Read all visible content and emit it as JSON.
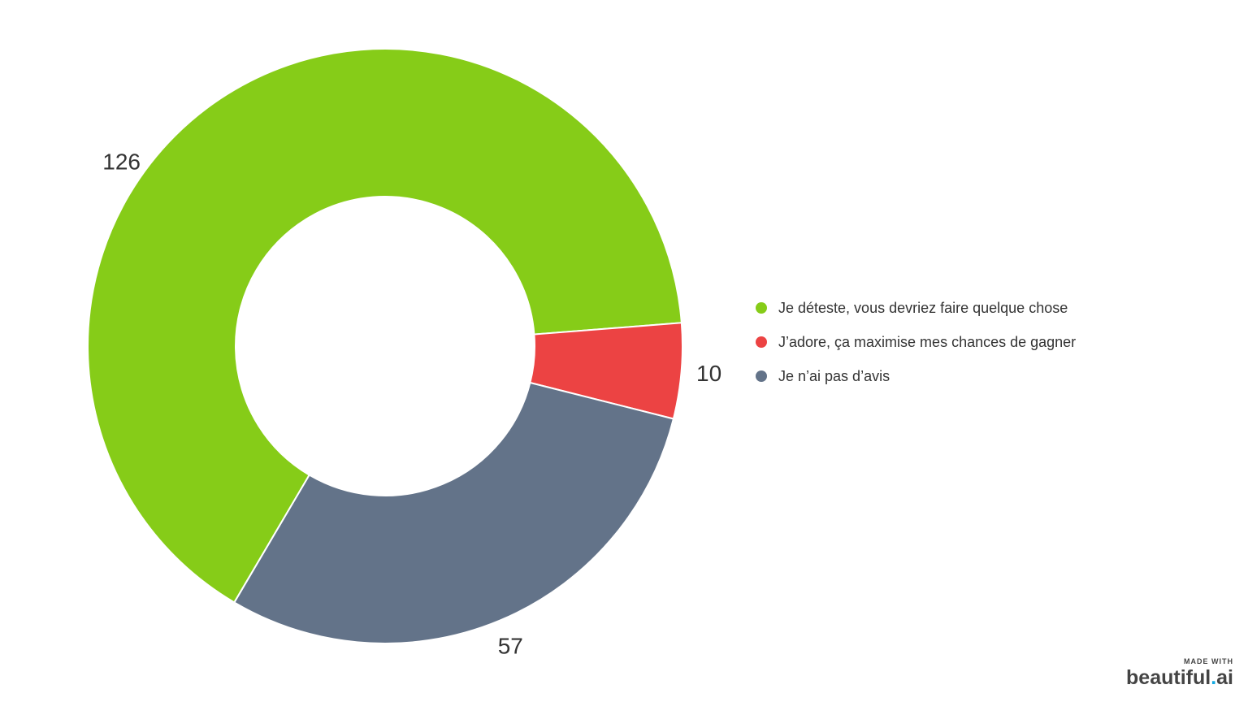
{
  "chart_data": {
    "type": "pie",
    "variant": "donut",
    "title": "",
    "categories": [
      "Je déteste, vous devriez faire quelque chose",
      "J’adore, ça maximise mes chances de gagner",
      "Je n’ai pas d’avis"
    ],
    "values": [
      126,
      10,
      57
    ],
    "value_labels": [
      "126",
      "10",
      "57"
    ],
    "colors": [
      "#86cc18",
      "#ec4343",
      "#637389"
    ],
    "legend_placement": "right"
  },
  "legend": {
    "items": [
      {
        "label": "Je déteste, vous devriez faire quelque chose",
        "color": "#86cc18"
      },
      {
        "label": "J’adore, ça maximise mes chances de gagner",
        "color": "#ec4343"
      },
      {
        "label": "Je n’ai pas d’avis",
        "color": "#637389"
      }
    ]
  },
  "badge": {
    "made_with": "MADE WITH",
    "brand_main": "beautiful",
    "brand_dot": ".",
    "brand_suffix": "ai"
  }
}
